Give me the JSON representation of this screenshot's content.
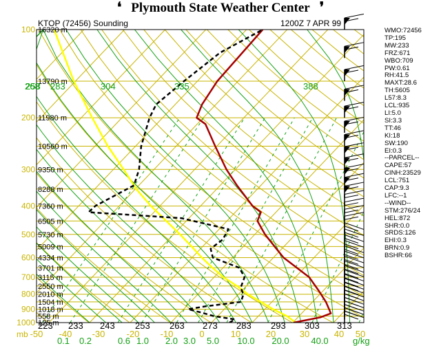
{
  "banner": {
    "title": "Plymouth State Weather Center"
  },
  "header": {
    "station": "KTOP (72456) Sounding",
    "time": "1200Z  7 APR 99"
  },
  "indices": [
    "WMO:72456",
    "TP:195",
    "MW:233",
    "FRZ:671",
    "WBO:709",
    "PW:0.61",
    "RH:41.5",
    "MAXT:28.6",
    "TH:5605",
    "L57:8.3",
    "LCL:935",
    "LI:5.0",
    "SI:3.3",
    "TT:46",
    "KI:18",
    "SW:190",
    "EI:0.3",
    "--PARCEL--",
    "CAPE:57",
    "CINH:23529",
    "LCL:751",
    "CAP:9.3",
    "LFC:--1",
    "--WIND--",
    "STM:276/24",
    "HEL:872",
    "SHR:0.0",
    "SRDS:126",
    "EHI:0.3",
    "BRN:0.9",
    "BSHR:66"
  ],
  "chart_data": {
    "type": "skew-t",
    "pressure_ticks": [
      100,
      200,
      300,
      400,
      500,
      600,
      700,
      800,
      900,
      1000
    ],
    "height_labels": [
      {
        "p": 100,
        "label": "16320 m"
      },
      {
        "p": 150,
        "label": "13790 m"
      },
      {
        "p": 200,
        "label": "11980 m"
      },
      {
        "p": 250,
        "label": "10560 m"
      },
      {
        "p": 300,
        "label": "9350 m"
      },
      {
        "p": 350,
        "label": "8288 m"
      },
      {
        "p": 400,
        "label": "7360 m"
      },
      {
        "p": 450,
        "label": "6505 m"
      },
      {
        "p": 500,
        "label": "5730 m"
      },
      {
        "p": 550,
        "label": "5009 m"
      },
      {
        "p": 600,
        "label": "4334 m"
      },
      {
        "p": 650,
        "label": "3701 m"
      },
      {
        "p": 700,
        "label": "3115 m"
      },
      {
        "p": 750,
        "label": "2550 m"
      },
      {
        "p": 800,
        "label": "2010 m"
      },
      {
        "p": 850,
        "label": "1504 m"
      },
      {
        "p": 900,
        "label": "1018 m"
      },
      {
        "p": 950,
        "label": "558 m"
      },
      {
        "p": 1000,
        "label": "125 m"
      }
    ],
    "theta_labels": [
      "253",
      "268",
      "283",
      "304",
      "335",
      "388"
    ],
    "bottom_theta_labels": [
      "223",
      "233",
      "243",
      "253",
      "263",
      "273",
      "283",
      "293",
      "303",
      "313"
    ],
    "temp_axis": {
      "label": "mb",
      "ticks": [
        "-50",
        "-40",
        "-30",
        "-20",
        "-10",
        "0",
        "10",
        "20",
        "30",
        "40",
        "50"
      ]
    },
    "mixing_ratio_axis": {
      "unit": "g/kg",
      "ticks": [
        "0.1",
        "0.2",
        "0.6",
        "1.0",
        "2.0",
        "3.0",
        "5.0",
        "10.0",
        "20.0",
        "40.0"
      ]
    },
    "temperature": {
      "color": "#a60000",
      "p": [
        1000,
        960,
        930,
        850,
        780,
        700,
        600,
        560,
        500,
        450,
        420,
        400,
        340,
        300,
        250,
        210,
        200,
        180,
        150,
        100
      ],
      "t": [
        20.2,
        25.5,
        27.2,
        23.3,
        19.0,
        13.4,
        2.5,
        -1.3,
        -7.5,
        -12.5,
        -13.7,
        -17.2,
        -25.9,
        -32.2,
        -40.4,
        -48.0,
        -51.6,
        -53.4,
        -55.1,
        -56.0
      ]
    },
    "dewpoint": {
      "color": "#000000",
      "p": [
        1000,
        975,
        950,
        925,
        900,
        880,
        850,
        800,
        760,
        700,
        650,
        600,
        560,
        520,
        480,
        440,
        420,
        400,
        340,
        300,
        250,
        200,
        180,
        150,
        120,
        100
      ],
      "t": [
        4.4,
        5.0,
        -1.0,
        -4.7,
        -8.9,
        -5.3,
        2.4,
        1.2,
        -1.0,
        -2.5,
        -6.0,
        -14.9,
        -17.5,
        -16.7,
        -17.7,
        -31.9,
        -56.1,
        -55.9,
        -51.2,
        -53.7,
        -58.6,
        -63.2,
        -64.7,
        -63.3,
        -61.1,
        -56.0
      ]
    },
    "parcel": {
      "color": "#ffff00",
      "p": [
        1000,
        950,
        900,
        850,
        800,
        750,
        700,
        650,
        600,
        550,
        500,
        450,
        400,
        350,
        300,
        250,
        200,
        150,
        100
      ],
      "t": [
        20.7,
        17.0,
        12.0,
        7.3,
        2.3,
        -2.3,
        -7.7,
        -12.6,
        -17.6,
        -22.7,
        -28.4,
        -34.9,
        -42.2,
        -49.8,
        -57.5,
        -66.8,
        -77.3,
        -90.4,
        -107.3
      ]
    }
  }
}
